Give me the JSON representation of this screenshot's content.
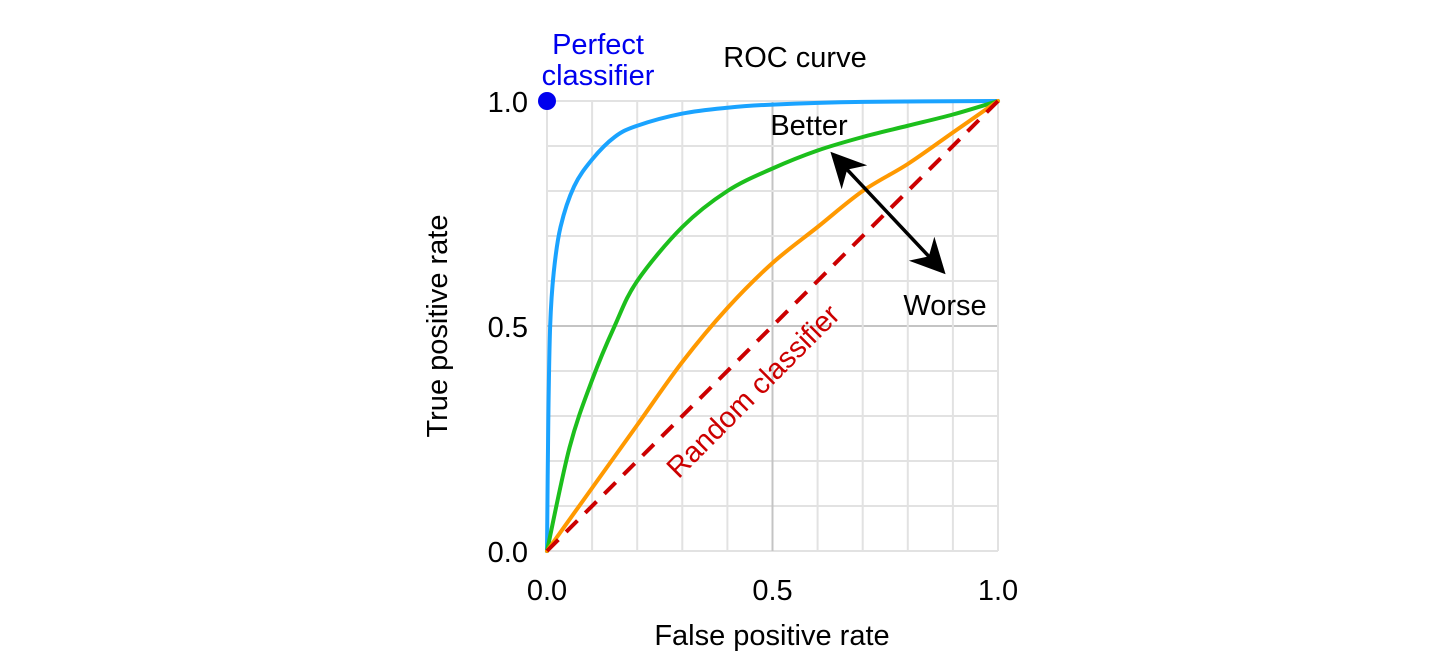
{
  "chart_data": {
    "type": "line",
    "title": "ROC curve",
    "xlabel": "False positive rate",
    "ylabel": "True positive rate",
    "xlim": [
      0,
      1
    ],
    "ylim": [
      0,
      1
    ],
    "grid": true,
    "x_ticks": [
      "0.0",
      "0.5",
      "1.0"
    ],
    "y_ticks": [
      "0.0",
      "0.5",
      "1.0"
    ],
    "x_tick_values": [
      0,
      0.5,
      1
    ],
    "y_tick_values": [
      0,
      0.5,
      1
    ],
    "series": [
      {
        "color": "#1aa3ff",
        "x": [
          0,
          0.003,
          0.007,
          0.015,
          0.03,
          0.06,
          0.1,
          0.15,
          0.2,
          0.3,
          0.4,
          0.5,
          0.7,
          1
        ],
        "y": [
          0,
          0.3,
          0.5,
          0.62,
          0.72,
          0.81,
          0.87,
          0.92,
          0.945,
          0.972,
          0.985,
          0.992,
          0.998,
          1
        ]
      },
      {
        "color": "#1cbf1c",
        "x": [
          0,
          0.05,
          0.1,
          0.15,
          0.2,
          0.3,
          0.4,
          0.5,
          0.6,
          0.7,
          0.8,
          0.9,
          1
        ],
        "y": [
          0,
          0.23,
          0.38,
          0.5,
          0.6,
          0.72,
          0.8,
          0.85,
          0.89,
          0.92,
          0.945,
          0.97,
          1
        ]
      },
      {
        "color": "#ff9900",
        "x": [
          0,
          0.1,
          0.2,
          0.3,
          0.4,
          0.5,
          0.6,
          0.7,
          0.8,
          0.9,
          1
        ],
        "y": [
          0,
          0.14,
          0.28,
          0.42,
          0.54,
          0.64,
          0.72,
          0.8,
          0.86,
          0.93,
          1
        ]
      },
      {
        "name": "Random classifier",
        "color": "#cc0000",
        "dashed": true,
        "x": [
          0,
          1
        ],
        "y": [
          0,
          1
        ]
      }
    ],
    "annotations": {
      "perfect": {
        "text_line1": "Perfect",
        "text_line2": "classifier",
        "x": 0,
        "y": 1,
        "color": "#0000ee"
      },
      "better": "Better",
      "worse": "Worse",
      "random": "Random classifier"
    }
  }
}
